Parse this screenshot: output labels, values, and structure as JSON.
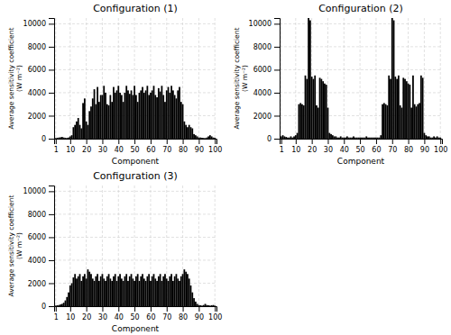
{
  "chart_data": [
    {
      "type": "bar",
      "title": "Configuration (1)",
      "xlabel": "Component",
      "ylabel": "Average sensitivity coefficient\n(W m⁻²)",
      "color": "black",
      "grid": true,
      "xlim": [
        0,
        101
      ],
      "xticks": [
        1,
        10,
        20,
        30,
        40,
        50,
        60,
        70,
        80,
        90,
        100
      ],
      "ylim": [
        0,
        10500
      ],
      "yticks": [
        0,
        2000,
        4000,
        6000,
        8000,
        10000
      ],
      "x": [
        1,
        2,
        3,
        4,
        5,
        6,
        7,
        8,
        9,
        10,
        11,
        12,
        13,
        14,
        15,
        16,
        17,
        18,
        19,
        20,
        21,
        22,
        23,
        24,
        25,
        26,
        27,
        28,
        29,
        30,
        31,
        32,
        33,
        34,
        35,
        36,
        37,
        38,
        39,
        40,
        41,
        42,
        43,
        44,
        45,
        46,
        47,
        48,
        49,
        50,
        51,
        52,
        53,
        54,
        55,
        56,
        57,
        58,
        59,
        60,
        61,
        62,
        63,
        64,
        65,
        66,
        67,
        68,
        69,
        70,
        71,
        72,
        73,
        74,
        75,
        76,
        77,
        78,
        79,
        80,
        81,
        82,
        83,
        84,
        85,
        86,
        87,
        88,
        89,
        90,
        91,
        92,
        93,
        94,
        95,
        96,
        97,
        98,
        99,
        100
      ],
      "values": [
        50,
        80,
        100,
        120,
        150,
        100,
        80,
        60,
        100,
        200,
        300,
        1000,
        1200,
        1500,
        1800,
        1200,
        900,
        3100,
        3500,
        1500,
        1200,
        2400,
        2800,
        3500,
        4300,
        3000,
        4500,
        3200,
        3800,
        3800,
        4600,
        4000,
        3000,
        2900,
        3800,
        3200,
        4500,
        4000,
        4200,
        4600,
        4000,
        3800,
        3200,
        4000,
        4600,
        4200,
        3900,
        4200,
        3800,
        4600,
        3800,
        3200,
        4000,
        4200,
        4500,
        4000,
        4200,
        4600,
        3800,
        4000,
        4200,
        4600,
        3800,
        3600,
        4400,
        4100,
        4600,
        3800,
        3200,
        4200,
        4500,
        4000,
        4600,
        4200,
        3800,
        3500,
        4200,
        4500,
        3200,
        3000,
        1500,
        1200,
        1000,
        1200,
        1000,
        900,
        400,
        300,
        200,
        100,
        100,
        80,
        60,
        50,
        100,
        200,
        300,
        200,
        100,
        80
      ]
    },
    {
      "type": "bar",
      "title": "Configuration (2)",
      "xlabel": "Component",
      "ylabel": "Average sensitivity coefficient\n(W m⁻²)",
      "color": "black",
      "grid": true,
      "xlim": [
        0,
        101
      ],
      "xticks": [
        1,
        10,
        20,
        30,
        40,
        50,
        60,
        70,
        80,
        90,
        100
      ],
      "ylim": [
        0,
        10500
      ],
      "yticks": [
        0,
        2000,
        4000,
        6000,
        8000,
        10000
      ],
      "x": [
        1,
        2,
        3,
        4,
        5,
        6,
        7,
        8,
        9,
        10,
        11,
        12,
        13,
        14,
        15,
        16,
        17,
        18,
        19,
        20,
        21,
        22,
        23,
        24,
        25,
        26,
        27,
        28,
        29,
        30,
        31,
        32,
        33,
        34,
        35,
        36,
        37,
        38,
        39,
        40,
        41,
        42,
        43,
        44,
        45,
        46,
        47,
        48,
        49,
        50,
        51,
        52,
        53,
        54,
        55,
        56,
        57,
        58,
        59,
        60,
        61,
        62,
        63,
        64,
        65,
        66,
        67,
        68,
        69,
        70,
        71,
        72,
        73,
        74,
        75,
        76,
        77,
        78,
        79,
        80,
        81,
        82,
        83,
        84,
        85,
        86,
        87,
        88,
        89,
        90,
        91,
        92,
        93,
        94,
        95,
        96,
        97,
        98,
        99,
        100
      ],
      "values": [
        200,
        300,
        200,
        150,
        100,
        100,
        200,
        100,
        200,
        300,
        500,
        3000,
        3100,
        3000,
        2900,
        5500,
        5200,
        10500,
        10300,
        5400,
        5200,
        5500,
        2900,
        2700,
        5300,
        5200,
        5000,
        4800,
        4700,
        2700,
        500,
        400,
        300,
        200,
        200,
        100,
        100,
        200,
        100,
        100,
        100,
        200,
        100,
        100,
        100,
        200,
        100,
        100,
        100,
        100,
        100,
        100,
        100,
        200,
        100,
        100,
        100,
        100,
        100,
        100,
        100,
        100,
        300,
        3000,
        3100,
        3000,
        2900,
        5500,
        5200,
        10500,
        10300,
        5400,
        5200,
        5500,
        2900,
        2700,
        5300,
        5200,
        5000,
        4800,
        4700,
        2700,
        5500,
        3000,
        2800,
        3000,
        3100,
        5500,
        5300,
        500,
        300,
        200,
        200,
        100,
        100,
        200,
        100,
        200,
        100,
        100
      ]
    },
    {
      "type": "bar",
      "title": "Configuration (3)",
      "xlabel": "Component",
      "ylabel": "Average sensitivity coefficient\n(W m⁻²)",
      "color": "black",
      "grid": true,
      "xlim": [
        0,
        101
      ],
      "xticks": [
        1,
        10,
        20,
        30,
        40,
        50,
        60,
        70,
        80,
        90,
        100
      ],
      "ylim": [
        0,
        10500
      ],
      "yticks": [
        0,
        2000,
        4000,
        6000,
        8000,
        10000
      ],
      "x": [
        1,
        2,
        3,
        4,
        5,
        6,
        7,
        8,
        9,
        10,
        11,
        12,
        13,
        14,
        15,
        16,
        17,
        18,
        19,
        20,
        21,
        22,
        23,
        24,
        25,
        26,
        27,
        28,
        29,
        30,
        31,
        32,
        33,
        34,
        35,
        36,
        37,
        38,
        39,
        40,
        41,
        42,
        43,
        44,
        45,
        46,
        47,
        48,
        49,
        50,
        51,
        52,
        53,
        54,
        55,
        56,
        57,
        58,
        59,
        60,
        61,
        62,
        63,
        64,
        65,
        66,
        67,
        68,
        69,
        70,
        71,
        72,
        73,
        74,
        75,
        76,
        77,
        78,
        79,
        80,
        81,
        82,
        83,
        84,
        85,
        86,
        87,
        88,
        89,
        90,
        91,
        92,
        93,
        94,
        95,
        96,
        97,
        98,
        99,
        100
      ],
      "values": [
        50,
        80,
        100,
        150,
        200,
        300,
        500,
        800,
        1200,
        1800,
        2000,
        2500,
        2800,
        2400,
        2600,
        2800,
        2200,
        2600,
        2800,
        2400,
        3200,
        3000,
        2800,
        2400,
        2200,
        2600,
        2800,
        2200,
        2600,
        2800,
        2400,
        2200,
        2600,
        2800,
        2400,
        2200,
        2600,
        2800,
        2200,
        2600,
        2800,
        2400,
        2200,
        2600,
        2800,
        2200,
        2600,
        2800,
        2400,
        2200,
        2600,
        2800,
        2200,
        2600,
        2800,
        2400,
        2200,
        2600,
        2800,
        2200,
        2600,
        2800,
        2400,
        2200,
        2600,
        2800,
        2200,
        2600,
        2800,
        2400,
        2200,
        2600,
        2800,
        2200,
        2600,
        2800,
        2400,
        2200,
        2600,
        2800,
        3200,
        3000,
        2800,
        2400,
        1800,
        1200,
        700,
        400,
        200,
        100,
        80,
        50,
        100,
        200,
        100,
        80,
        50,
        80,
        100,
        50
      ]
    }
  ]
}
